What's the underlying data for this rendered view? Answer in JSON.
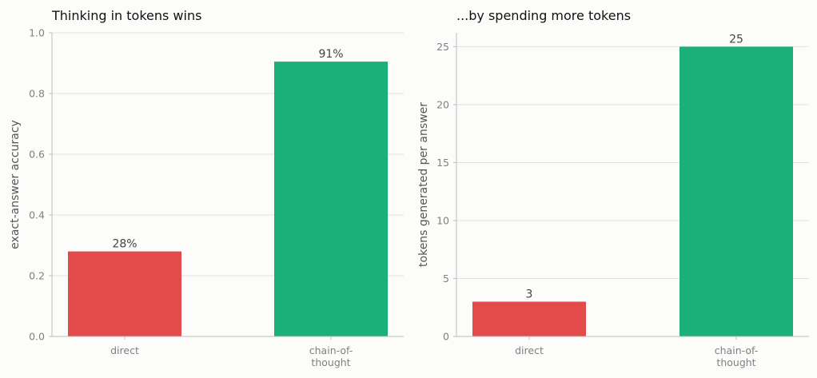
{
  "chart_data": [
    {
      "type": "bar",
      "title": "Thinking in tokens wins",
      "xlabel": "",
      "ylabel": "exact-answer accuracy",
      "categories": [
        "direct",
        "chain-of-thought"
      ],
      "category_lines": [
        [
          "direct"
        ],
        [
          "chain-of-",
          "thought"
        ]
      ],
      "values": [
        0.28,
        0.905
      ],
      "data_labels": [
        "28%",
        "91%"
      ],
      "colors": [
        "#e34a4a",
        "#1bb07a"
      ],
      "ylim": [
        0,
        1.0
      ],
      "yticks": [
        0.0,
        0.2,
        0.4,
        0.6,
        0.8,
        1.0
      ],
      "ytick_labels": [
        "0.0",
        "0.2",
        "0.4",
        "0.6",
        "0.8",
        "1.0"
      ],
      "grid": "horizontal",
      "legend": "none"
    },
    {
      "type": "bar",
      "title": "...by spending more tokens",
      "xlabel": "",
      "ylabel": "tokens generated per answer",
      "categories": [
        "direct",
        "chain-of-thought"
      ],
      "category_lines": [
        [
          "direct"
        ],
        [
          "chain-of-",
          "thought"
        ]
      ],
      "values": [
        3,
        25
      ],
      "data_labels": [
        "3",
        "25"
      ],
      "colors": [
        "#e34a4a",
        "#1bb07a"
      ],
      "ylim": [
        0,
        26.2
      ],
      "yticks": [
        0,
        5,
        10,
        15,
        20,
        25
      ],
      "ytick_labels": [
        "0",
        "5",
        "10",
        "15",
        "20",
        "25"
      ],
      "grid": "horizontal",
      "legend": "none"
    }
  ]
}
